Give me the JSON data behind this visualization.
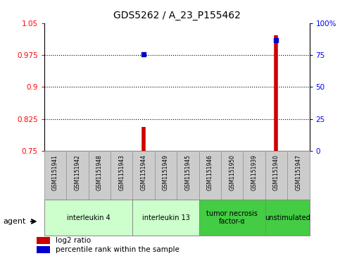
{
  "title": "GDS5262 / A_23_P155462",
  "samples": [
    "GSM1151941",
    "GSM1151942",
    "GSM1151948",
    "GSM1151943",
    "GSM1151944",
    "GSM1151949",
    "GSM1151945",
    "GSM1151946",
    "GSM1151950",
    "GSM1151939",
    "GSM1151940",
    "GSM1151947"
  ],
  "log2_ratio": [
    null,
    null,
    null,
    null,
    0.807,
    null,
    null,
    null,
    null,
    null,
    1.022,
    null
  ],
  "percentile": [
    null,
    null,
    null,
    null,
    0.755,
    null,
    null,
    null,
    null,
    null,
    0.868,
    null
  ],
  "ylim": [
    0.75,
    1.05
  ],
  "yticks": [
    0.75,
    0.825,
    0.9,
    0.975,
    1.05
  ],
  "right_ylim": [
    0,
    100
  ],
  "right_yticks": [
    0,
    25,
    50,
    75,
    100
  ],
  "groups": [
    {
      "label": "interleukin 4",
      "start": 0,
      "end": 3,
      "color": "#ccffcc"
    },
    {
      "label": "interleukin 13",
      "start": 4,
      "end": 6,
      "color": "#ccffcc"
    },
    {
      "label": "tumor necrosis\nfactor-α",
      "start": 7,
      "end": 9,
      "color": "#44cc44"
    },
    {
      "label": "unstimulated",
      "start": 10,
      "end": 11,
      "color": "#44cc44"
    }
  ],
  "bar_color": "#cc0000",
  "dot_color": "#0000cc",
  "sample_box_color": "#cccccc",
  "sample_box_edge": "#999999",
  "legend_items": [
    {
      "color": "#cc0000",
      "label": "log2 ratio"
    },
    {
      "color": "#0000cc",
      "label": "percentile rank within the sample"
    }
  ]
}
